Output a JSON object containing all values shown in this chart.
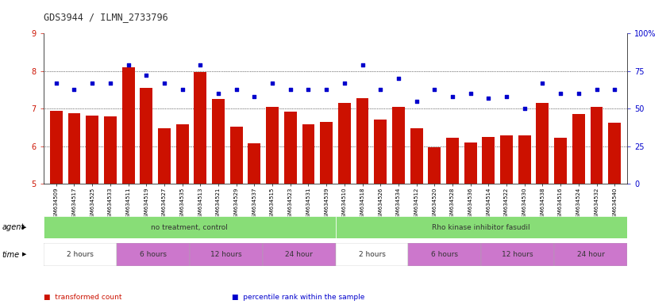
{
  "title": "GDS3944 / ILMN_2733796",
  "samples": [
    "GSM634509",
    "GSM634517",
    "GSM634525",
    "GSM634533",
    "GSM634511",
    "GSM634519",
    "GSM634527",
    "GSM634535",
    "GSM634513",
    "GSM634521",
    "GSM634529",
    "GSM634537",
    "GSM634515",
    "GSM634523",
    "GSM634531",
    "GSM634539",
    "GSM634510",
    "GSM634518",
    "GSM634526",
    "GSM634534",
    "GSM634512",
    "GSM634520",
    "GSM634528",
    "GSM634536",
    "GSM634514",
    "GSM634522",
    "GSM634530",
    "GSM634538",
    "GSM634516",
    "GSM634524",
    "GSM634532",
    "GSM634540"
  ],
  "bar_values": [
    6.95,
    6.88,
    6.82,
    6.8,
    8.1,
    7.55,
    6.48,
    6.58,
    7.97,
    7.25,
    6.52,
    6.08,
    7.05,
    6.93,
    6.58,
    6.65,
    7.15,
    7.28,
    6.72,
    7.05,
    6.48,
    5.98,
    6.22,
    6.1,
    6.25,
    6.3,
    6.28,
    7.15,
    6.22,
    6.85,
    7.05,
    6.62
  ],
  "percentile_values": [
    67,
    63,
    67,
    67,
    79,
    72,
    67,
    63,
    79,
    60,
    63,
    58,
    67,
    63,
    63,
    63,
    67,
    79,
    63,
    70,
    55,
    63,
    58,
    60,
    57,
    58,
    50,
    67,
    60,
    60,
    63,
    63
  ],
  "bar_color": "#cc1100",
  "dot_color": "#0000cc",
  "ylim_left": [
    5,
    9
  ],
  "ylim_right": [
    0,
    100
  ],
  "yticks_left": [
    5,
    6,
    7,
    8,
    9
  ],
  "yticks_right": [
    0,
    25,
    50,
    75,
    100
  ],
  "ytick_labels_right": [
    "0",
    "25",
    "50",
    "75",
    "100%"
  ],
  "agent_groups": [
    {
      "label": "no treatment, control",
      "color": "#88dd77",
      "start": 0,
      "end": 16
    },
    {
      "label": "Rho kinase inhibitor fasudil",
      "color": "#88dd77",
      "start": 16,
      "end": 32
    }
  ],
  "time_colors": [
    "#ffffff",
    "#cc77cc",
    "#cc77cc",
    "#cc77cc",
    "#ffffff",
    "#cc77cc",
    "#cc77cc",
    "#cc77cc"
  ],
  "time_groups": [
    {
      "label": "2 hours",
      "start": 0,
      "end": 4
    },
    {
      "label": "6 hours",
      "start": 4,
      "end": 8
    },
    {
      "label": "12 hours",
      "start": 8,
      "end": 12
    },
    {
      "label": "24 hour",
      "start": 12,
      "end": 16
    },
    {
      "label": "2 hours",
      "start": 16,
      "end": 20
    },
    {
      "label": "6 hours",
      "start": 20,
      "end": 24
    },
    {
      "label": "12 hours",
      "start": 24,
      "end": 28
    },
    {
      "label": "24 hour",
      "start": 28,
      "end": 32
    }
  ],
  "bg_color": "#ffffff",
  "legend_items": [
    {
      "label": "transformed count",
      "color": "#cc1100"
    },
    {
      "label": "percentile rank within the sample",
      "color": "#0000cc"
    }
  ],
  "agent_label": "agent",
  "time_label": "time"
}
